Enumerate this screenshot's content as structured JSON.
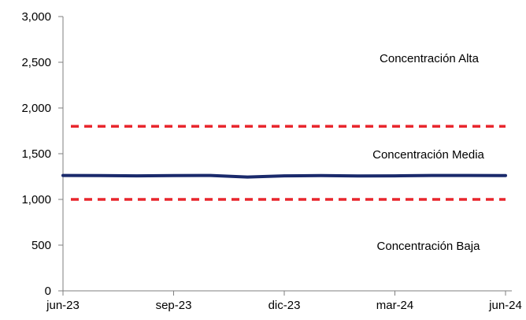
{
  "chart_data": {
    "type": "line",
    "title": "",
    "xlabel": "",
    "ylabel": "",
    "ylim": [
      0,
      3000
    ],
    "yticks": [
      0,
      500,
      1000,
      1500,
      2000,
      2500,
      3000
    ],
    "ytick_labels": [
      "0",
      "500",
      "1,000",
      "1,500",
      "2,000",
      "2,500",
      "3,000"
    ],
    "xtick_labels": [
      "jun-23",
      "sep-23",
      "dic-23",
      "mar-24",
      "jun-24"
    ],
    "x": [
      "jun-23",
      "jul-23",
      "ago-23",
      "sep-23",
      "oct-23",
      "nov-23",
      "dic-23",
      "ene-24",
      "feb-24",
      "mar-24",
      "abr-24",
      "may-24",
      "jun-24"
    ],
    "series": [
      {
        "values": [
          1262,
          1260,
          1258,
          1260,
          1262,
          1245,
          1258,
          1260,
          1257,
          1258,
          1262,
          1262,
          1260
        ],
        "color": "#1a2a6c"
      }
    ],
    "thresholds": [
      {
        "value": 1800,
        "color": "#e8262d",
        "style": "dashed"
      },
      {
        "value": 1000,
        "color": "#e8262d",
        "style": "dashed"
      }
    ],
    "annotations": [
      {
        "text": "Concentración Alta"
      },
      {
        "text": "Concentración Media"
      },
      {
        "text": "Concentración Baja"
      }
    ],
    "grid": false,
    "legend": "none"
  }
}
